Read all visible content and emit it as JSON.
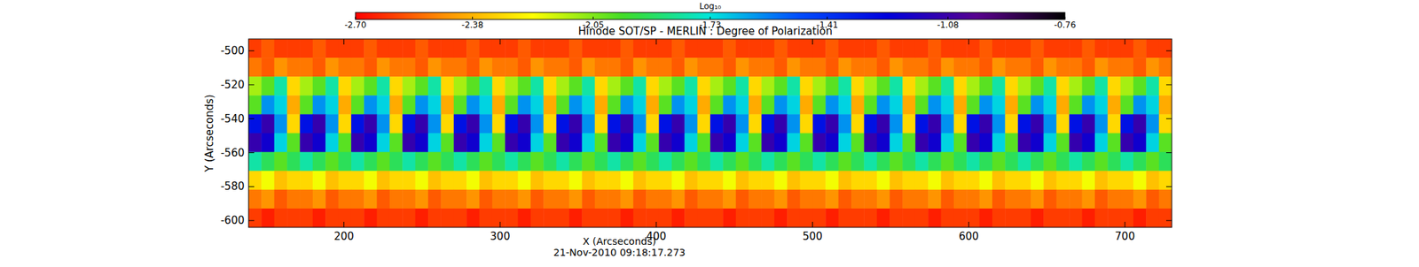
{
  "chart_data": {
    "type": "heatmap",
    "title": "Hinode SOT/SP - MERLIN : Degree of Polarization",
    "subtitle": "21-Nov-2010 09:18:17.273",
    "x_label": "X (Arcseconds)",
    "y_label": "Y (Arcseconds)",
    "colorbar_label": "Log₁₀",
    "xlim": [
      139,
      730
    ],
    "ylim": [
      -604,
      -493
    ],
    "xticks": [
      200,
      300,
      400,
      500,
      600,
      700
    ],
    "yticks": [
      -500,
      -520,
      -540,
      -560,
      -580,
      -600
    ],
    "colorbar_range": [
      -2.7,
      -0.76
    ],
    "colorbar_ticks": [
      {
        "value": -2.7,
        "label": "-2.70"
      },
      -2.38,
      -2.05,
      -1.73,
      -1.41,
      -1.08,
      -0.76
    ],
    "cells": [
      [
        -2.6,
        -2.55,
        -2.6,
        -2.6,
        -2.6,
        -2.55,
        -2.6,
        -2.6,
        -2.6,
        -2.55,
        -2.6,
        -2.6,
        -2.6,
        -2.55,
        -2.6,
        -2.6,
        -2.6,
        -2.55,
        -2.6,
        -2.6,
        -2.6,
        -2.55,
        -2.6,
        -2.6,
        -2.6,
        -2.55,
        -2.6,
        -2.6,
        -2.6,
        -2.55,
        -2.6,
        -2.6,
        -2.6,
        -2.55,
        -2.6,
        -2.6,
        -2.6,
        -2.55,
        -2.6,
        -2.6,
        -2.6,
        -2.55,
        -2.6,
        -2.6,
        -2.6,
        -2.55,
        -2.6,
        -2.6,
        -2.6,
        -2.55,
        -2.6,
        -2.6,
        -2.6,
        -2.55,
        -2.6,
        -2.6,
        -2.6,
        -2.55,
        -2.6,
        -2.6,
        -2.6,
        -2.55,
        -2.6,
        -2.6,
        -2.6,
        -2.55,
        -2.6,
        -2.6,
        -2.6,
        -2.55,
        -2.6,
        -2.6
      ],
      [
        -2.5,
        -2.55,
        -2.45,
        -2.5,
        -2.5,
        -2.55,
        -2.45,
        -2.5,
        -2.5,
        -2.55,
        -2.45,
        -2.5,
        -2.5,
        -2.55,
        -2.45,
        -2.5,
        -2.5,
        -2.55,
        -2.45,
        -2.5,
        -2.5,
        -2.55,
        -2.45,
        -2.5,
        -2.5,
        -2.55,
        -2.45,
        -2.5,
        -2.5,
        -2.55,
        -2.45,
        -2.5,
        -2.5,
        -2.55,
        -2.45,
        -2.5,
        -2.5,
        -2.55,
        -2.45,
        -2.5,
        -2.5,
        -2.55,
        -2.45,
        -2.5,
        -2.5,
        -2.55,
        -2.45,
        -2.5,
        -2.5,
        -2.55,
        -2.45,
        -2.5,
        -2.5,
        -2.55,
        -2.45,
        -2.5,
        -2.5,
        -2.55,
        -2.45,
        -2.5,
        -2.5,
        -2.55,
        -2.45,
        -2.5,
        -2.5,
        -2.55,
        -2.45,
        -2.5,
        -2.5,
        -2.55,
        -2.45,
        -2.5
      ],
      [
        -2.1,
        -2.0,
        -1.8,
        -2.3,
        -2.1,
        -2.0,
        -1.8,
        -2.3,
        -2.1,
        -2.0,
        -1.8,
        -2.3,
        -2.1,
        -2.0,
        -1.8,
        -2.3,
        -2.1,
        -2.0,
        -1.8,
        -2.3,
        -2.1,
        -2.0,
        -1.8,
        -2.3,
        -2.1,
        -2.0,
        -1.8,
        -2.3,
        -2.1,
        -2.0,
        -1.8,
        -2.3,
        -2.1,
        -2.0,
        -1.8,
        -2.3,
        -2.1,
        -2.0,
        -1.8,
        -2.3,
        -2.1,
        -2.0,
        -1.8,
        -2.3,
        -2.1,
        -2.0,
        -1.8,
        -2.3,
        -2.1,
        -2.0,
        -1.8,
        -2.3,
        -2.1,
        -2.0,
        -1.8,
        -2.3,
        -2.1,
        -2.0,
        -1.8,
        -2.3,
        -2.1,
        -2.0,
        -1.8,
        -2.3,
        -2.1,
        -2.0,
        -1.8,
        -2.3,
        -2.1,
        -2.0,
        -1.8,
        -2.3
      ],
      [
        -2.0,
        -1.6,
        -1.7,
        -2.4,
        -2.0,
        -1.6,
        -1.7,
        -2.4,
        -2.0,
        -1.6,
        -1.7,
        -2.4,
        -2.0,
        -1.6,
        -1.7,
        -2.4,
        -2.0,
        -1.6,
        -1.7,
        -2.4,
        -2.0,
        -1.6,
        -1.7,
        -2.4,
        -2.0,
        -1.6,
        -1.7,
        -2.4,
        -2.0,
        -1.6,
        -1.7,
        -2.4,
        -2.0,
        -1.6,
        -1.7,
        -2.4,
        -2.0,
        -1.6,
        -1.7,
        -2.4,
        -2.0,
        -1.6,
        -1.7,
        -2.4,
        -2.0,
        -1.6,
        -1.7,
        -2.4,
        -2.0,
        -1.6,
        -1.7,
        -2.4,
        -2.0,
        -1.6,
        -1.7,
        -2.4,
        -2.0,
        -1.6,
        -1.7,
        -2.4,
        -2.0,
        -1.6,
        -1.7,
        -2.4,
        -2.0,
        -1.6,
        -1.7,
        -2.4,
        -2.0,
        -1.6,
        -1.7,
        -2.4
      ],
      [
        -1.3,
        -1.1,
        -1.6,
        -2.3,
        -1.3,
        -1.1,
        -1.6,
        -2.3,
        -1.3,
        -1.1,
        -1.6,
        -2.3,
        -1.3,
        -1.1,
        -1.6,
        -2.3,
        -1.3,
        -1.1,
        -1.6,
        -2.3,
        -1.3,
        -1.1,
        -1.6,
        -2.3,
        -1.3,
        -1.1,
        -1.6,
        -2.3,
        -1.3,
        -1.1,
        -1.6,
        -2.3,
        -1.3,
        -1.1,
        -1.6,
        -2.3,
        -1.3,
        -1.1,
        -1.6,
        -2.3,
        -1.3,
        -1.1,
        -1.6,
        -2.3,
        -1.3,
        -1.1,
        -1.6,
        -2.3,
        -1.3,
        -1.1,
        -1.6,
        -2.3,
        -1.3,
        -1.1,
        -1.6,
        -2.3,
        -1.3,
        -1.1,
        -1.6,
        -2.3,
        -1.3,
        -1.1,
        -1.6,
        -2.3,
        -1.3,
        -1.1,
        -1.6,
        -2.3,
        -1.3,
        -1.1,
        -1.6,
        -2.3
      ],
      [
        -1.1,
        -1.2,
        -1.7,
        -2.0,
        -1.1,
        -1.2,
        -1.7,
        -2.0,
        -1.1,
        -1.2,
        -1.7,
        -2.0,
        -1.1,
        -1.2,
        -1.7,
        -2.0,
        -1.1,
        -1.2,
        -1.7,
        -2.0,
        -1.1,
        -1.2,
        -1.7,
        -2.0,
        -1.1,
        -1.2,
        -1.7,
        -2.0,
        -1.1,
        -1.2,
        -1.7,
        -2.0,
        -1.1,
        -1.2,
        -1.7,
        -2.0,
        -1.1,
        -1.2,
        -1.7,
        -2.0,
        -1.1,
        -1.2,
        -1.7,
        -2.0,
        -1.1,
        -1.2,
        -1.7,
        -2.0,
        -1.1,
        -1.2,
        -1.7,
        -2.0,
        -1.1,
        -1.2,
        -1.7,
        -2.0,
        -1.1,
        -1.2,
        -1.7,
        -2.0,
        -1.1,
        -1.2,
        -1.7,
        -2.0,
        -1.1,
        -1.2,
        -1.7,
        -2.0,
        -1.1,
        -1.2,
        -1.7,
        -2.0
      ],
      [
        -1.8,
        -1.9,
        -2.0,
        -1.9,
        -1.8,
        -1.9,
        -2.0,
        -1.9,
        -1.8,
        -1.9,
        -2.0,
        -1.9,
        -1.8,
        -1.9,
        -2.0,
        -1.9,
        -1.8,
        -1.9,
        -2.0,
        -1.9,
        -1.8,
        -1.9,
        -2.0,
        -1.9,
        -1.8,
        -1.9,
        -2.0,
        -1.9,
        -1.8,
        -1.9,
        -2.0,
        -1.9,
        -1.8,
        -1.9,
        -2.0,
        -1.9,
        -1.8,
        -1.9,
        -2.0,
        -1.9,
        -1.8,
        -1.9,
        -2.0,
        -1.9,
        -1.8,
        -1.9,
        -2.0,
        -1.9,
        -1.8,
        -1.9,
        -2.0,
        -1.9,
        -1.8,
        -1.9,
        -2.0,
        -1.9,
        -1.8,
        -1.9,
        -2.0,
        -1.9,
        -1.8,
        -1.9,
        -2.0,
        -1.9,
        -1.8,
        -1.9,
        -2.0,
        -1.9,
        -1.8,
        -1.9,
        -2.0,
        -1.9
      ],
      [
        -2.3,
        -2.2,
        -2.35,
        -2.3,
        -2.3,
        -2.2,
        -2.35,
        -2.3,
        -2.3,
        -2.2,
        -2.35,
        -2.3,
        -2.3,
        -2.2,
        -2.35,
        -2.3,
        -2.3,
        -2.2,
        -2.35,
        -2.3,
        -2.3,
        -2.2,
        -2.35,
        -2.3,
        -2.3,
        -2.2,
        -2.35,
        -2.3,
        -2.3,
        -2.2,
        -2.35,
        -2.3,
        -2.3,
        -2.2,
        -2.35,
        -2.3,
        -2.3,
        -2.2,
        -2.35,
        -2.3,
        -2.3,
        -2.2,
        -2.35,
        -2.3,
        -2.3,
        -2.2,
        -2.35,
        -2.3,
        -2.3,
        -2.2,
        -2.35,
        -2.3,
        -2.3,
        -2.2,
        -2.35,
        -2.3,
        -2.3,
        -2.2,
        -2.35,
        -2.3,
        -2.3,
        -2.2,
        -2.35,
        -2.3,
        -2.3,
        -2.2,
        -2.35,
        -2.3,
        -2.3,
        -2.2,
        -2.35,
        -2.3
      ],
      [
        -2.5,
        -2.45,
        -2.55,
        -2.5,
        -2.5,
        -2.45,
        -2.55,
        -2.5,
        -2.5,
        -2.45,
        -2.55,
        -2.5,
        -2.5,
        -2.45,
        -2.55,
        -2.5,
        -2.5,
        -2.45,
        -2.55,
        -2.5,
        -2.5,
        -2.45,
        -2.55,
        -2.5,
        -2.5,
        -2.45,
        -2.55,
        -2.5,
        -2.5,
        -2.45,
        -2.55,
        -2.5,
        -2.5,
        -2.45,
        -2.55,
        -2.5,
        -2.5,
        -2.45,
        -2.55,
        -2.5,
        -2.5,
        -2.45,
        -2.55,
        -2.5,
        -2.5,
        -2.45,
        -2.55,
        -2.5,
        -2.5,
        -2.45,
        -2.55,
        -2.5,
        -2.5,
        -2.45,
        -2.55,
        -2.5,
        -2.5,
        -2.45,
        -2.55,
        -2.5,
        -2.5,
        -2.45,
        -2.55,
        -2.5,
        -2.5,
        -2.45,
        -2.55,
        -2.5,
        -2.5,
        -2.45,
        -2.55,
        -2.5
      ],
      [
        -2.6,
        -2.65,
        -2.6,
        -2.6,
        -2.6,
        -2.65,
        -2.6,
        -2.6,
        -2.6,
        -2.65,
        -2.6,
        -2.6,
        -2.6,
        -2.65,
        -2.6,
        -2.6,
        -2.6,
        -2.65,
        -2.6,
        -2.6,
        -2.6,
        -2.65,
        -2.6,
        -2.6,
        -2.6,
        -2.65,
        -2.6,
        -2.6,
        -2.6,
        -2.65,
        -2.6,
        -2.6,
        -2.6,
        -2.65,
        -2.6,
        -2.6,
        -2.6,
        -2.65,
        -2.6,
        -2.6,
        -2.6,
        -2.65,
        -2.6,
        -2.6,
        -2.6,
        -2.65,
        -2.6,
        -2.6,
        -2.6,
        -2.65,
        -2.6,
        -2.6,
        -2.6,
        -2.65,
        -2.6,
        -2.6,
        -2.6,
        -2.65,
        -2.6,
        -2.6,
        -2.6,
        -2.65,
        -2.6,
        -2.6,
        -2.6,
        -2.65,
        -2.6,
        -2.6,
        -2.6,
        -2.65,
        -2.6,
        -2.6
      ]
    ]
  }
}
